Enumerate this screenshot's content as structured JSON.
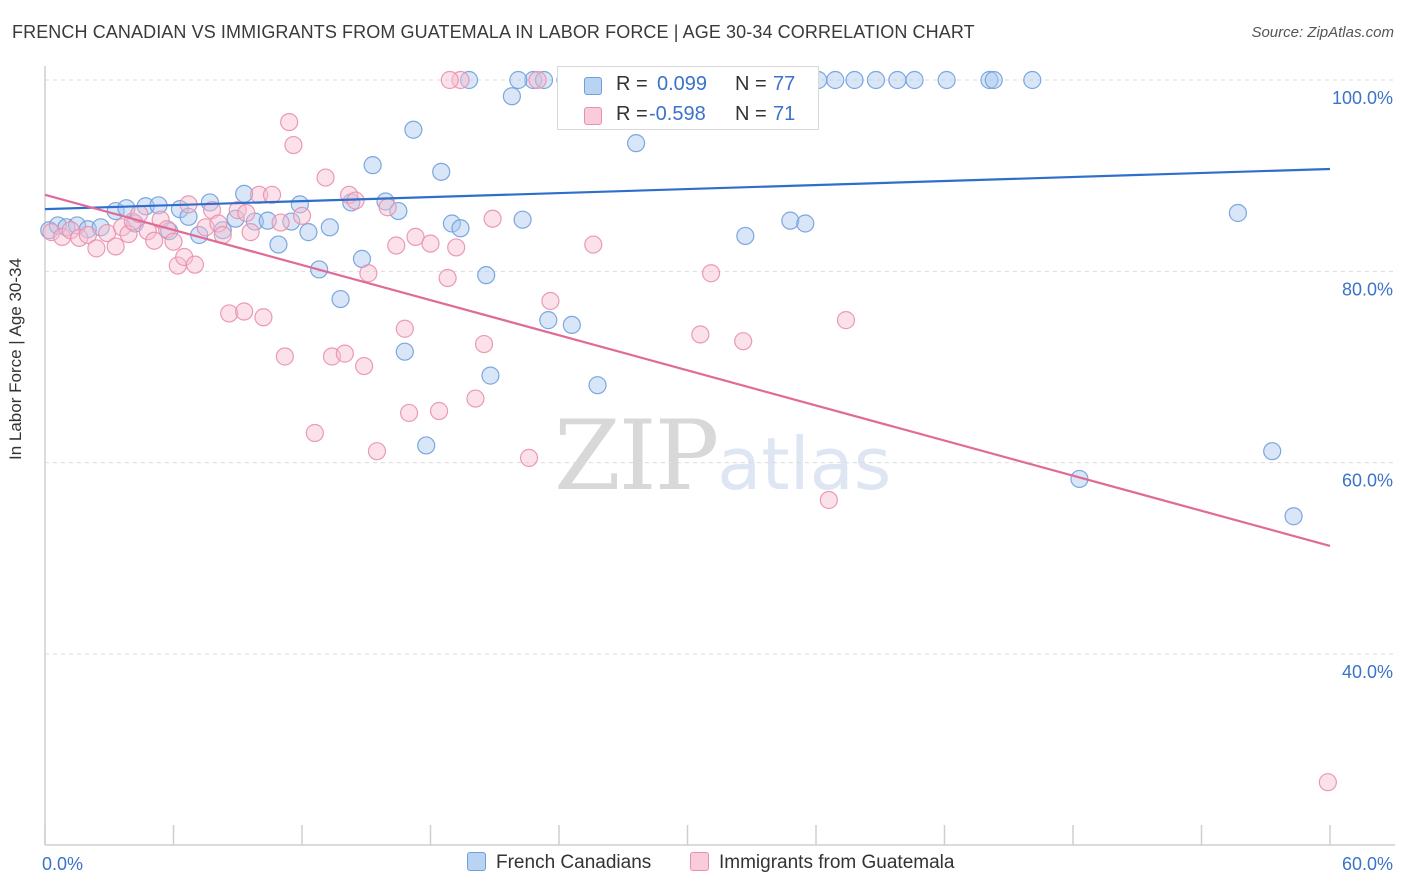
{
  "header": {
    "title": "FRENCH CANADIAN VS IMMIGRANTS FROM GUATEMALA IN LABOR FORCE | AGE 30-34 CORRELATION CHART",
    "source": "Source: ZipAtlas.com"
  },
  "watermark": {
    "zip": "ZIP",
    "atlas": "atlas"
  },
  "legend": {
    "r_label": "R =",
    "n_label": "N =",
    "rows": [
      {
        "r": "0.099",
        "n": "77"
      },
      {
        "r": "-0.598",
        "n": "71"
      }
    ]
  },
  "colors": {
    "blue_fill": "#a8c8f0",
    "blue_stroke": "#6f9fdc",
    "blue_line": "#2f6fcc",
    "pink_fill": "#f7bfd0",
    "pink_stroke": "#ea8fae",
    "pink_line": "#e06a98",
    "tick_text": "#3b73c8"
  },
  "chart_data": {
    "type": "scatter",
    "xlabel": "",
    "ylabel": "In Labor Force | Age 30-34",
    "xlim": [
      0,
      60
    ],
    "ylim": [
      20,
      102
    ],
    "x_tick_labels": [
      "0.0%",
      "60.0%"
    ],
    "y_ticks": [
      40,
      60,
      80,
      100
    ],
    "y_tick_labels": [
      "40.0%",
      "60.0%",
      "80.0%",
      "100.0%"
    ],
    "grid": true,
    "legend_position": "top-center",
    "series": [
      {
        "name": "French Canadians",
        "r": 0.099,
        "n": 77,
        "trend": {
          "x": [
            0,
            60
          ],
          "y": [
            86.5,
            90.7
          ]
        },
        "points": [
          [
            0.2,
            84.3
          ],
          [
            0.6,
            84.8
          ],
          [
            1.0,
            84.6
          ],
          [
            1.5,
            84.8
          ],
          [
            2.0,
            84.4
          ],
          [
            2.6,
            84.6
          ],
          [
            3.3,
            86.3
          ],
          [
            3.8,
            86.6
          ],
          [
            4.2,
            85.0
          ],
          [
            4.7,
            86.8
          ],
          [
            5.3,
            86.9
          ],
          [
            5.8,
            84.2
          ],
          [
            6.3,
            86.5
          ],
          [
            6.7,
            85.7
          ],
          [
            7.2,
            83.8
          ],
          [
            7.7,
            87.2
          ],
          [
            8.3,
            84.3
          ],
          [
            8.9,
            85.5
          ],
          [
            9.3,
            88.1
          ],
          [
            9.8,
            85.2
          ],
          [
            10.4,
            85.3
          ],
          [
            10.9,
            82.8
          ],
          [
            11.5,
            85.2
          ],
          [
            11.9,
            87.0
          ],
          [
            12.3,
            84.1
          ],
          [
            12.8,
            80.2
          ],
          [
            13.3,
            84.6
          ],
          [
            13.8,
            77.1
          ],
          [
            14.3,
            87.2
          ],
          [
            14.8,
            81.3
          ],
          [
            15.3,
            91.1
          ],
          [
            15.9,
            87.3
          ],
          [
            16.5,
            86.3
          ],
          [
            16.8,
            71.6
          ],
          [
            17.2,
            94.8
          ],
          [
            17.8,
            61.8
          ],
          [
            18.5,
            90.4
          ],
          [
            19.0,
            85.0
          ],
          [
            19.4,
            84.5
          ],
          [
            19.8,
            100.0
          ],
          [
            20.6,
            79.6
          ],
          [
            20.8,
            69.1
          ],
          [
            21.8,
            98.3
          ],
          [
            22.3,
            85.4
          ],
          [
            22.8,
            100.0
          ],
          [
            23.3,
            100.0
          ],
          [
            23.5,
            74.9
          ],
          [
            24.3,
            100.0
          ],
          [
            24.6,
            74.4
          ],
          [
            25.8,
            68.1
          ],
          [
            27.1,
            100.0
          ],
          [
            27.6,
            93.4
          ],
          [
            29.4,
            100.0
          ],
          [
            31.0,
            100.0
          ],
          [
            32.1,
            100.0
          ],
          [
            32.7,
            83.7
          ],
          [
            34.1,
            100.0
          ],
          [
            34.8,
            85.3
          ],
          [
            35.5,
            85.0
          ],
          [
            36.1,
            100.0
          ],
          [
            37.8,
            100.0
          ],
          [
            38.8,
            100.0
          ],
          [
            39.8,
            100.0
          ],
          [
            40.6,
            100.0
          ],
          [
            42.1,
            100.0
          ],
          [
            44.1,
            100.0
          ],
          [
            44.3,
            100.0
          ],
          [
            46.1,
            100.0
          ],
          [
            48.3,
            58.3
          ],
          [
            55.7,
            86.1
          ],
          [
            57.3,
            61.2
          ],
          [
            58.3,
            54.4
          ],
          [
            28.4,
            100.0
          ],
          [
            33.1,
            100.0
          ],
          [
            36.9,
            100.0
          ],
          [
            30.4,
            100.0
          ],
          [
            22.1,
            100.0
          ]
        ]
      },
      {
        "name": "Immigrants from Guatemala",
        "r": -0.598,
        "n": 71,
        "trend": {
          "x": [
            0,
            60
          ],
          "y": [
            88.0,
            51.3
          ]
        },
        "points": [
          [
            0.3,
            84.1
          ],
          [
            0.8,
            83.6
          ],
          [
            1.2,
            84.3
          ],
          [
            1.6,
            83.5
          ],
          [
            2.0,
            83.8
          ],
          [
            2.4,
            82.4
          ],
          [
            2.9,
            84.0
          ],
          [
            3.3,
            82.6
          ],
          [
            3.6,
            84.6
          ],
          [
            3.9,
            83.9
          ],
          [
            4.1,
            85.2
          ],
          [
            4.4,
            86.0
          ],
          [
            4.8,
            84.2
          ],
          [
            5.1,
            83.2
          ],
          [
            5.4,
            85.4
          ],
          [
            5.7,
            84.4
          ],
          [
            6.0,
            83.1
          ],
          [
            6.2,
            80.6
          ],
          [
            6.5,
            81.5
          ],
          [
            6.7,
            87.0
          ],
          [
            7.0,
            80.7
          ],
          [
            7.5,
            84.6
          ],
          [
            7.8,
            86.4
          ],
          [
            8.1,
            85.0
          ],
          [
            8.3,
            83.8
          ],
          [
            8.6,
            75.6
          ],
          [
            9.0,
            86.4
          ],
          [
            9.3,
            75.8
          ],
          [
            9.6,
            84.1
          ],
          [
            10.0,
            88.0
          ],
          [
            10.2,
            75.2
          ],
          [
            10.6,
            88.0
          ],
          [
            11.0,
            85.1
          ],
          [
            11.2,
            71.1
          ],
          [
            11.4,
            95.6
          ],
          [
            11.6,
            93.2
          ],
          [
            12.0,
            85.8
          ],
          [
            12.6,
            63.1
          ],
          [
            13.1,
            89.8
          ],
          [
            13.4,
            71.1
          ],
          [
            14.0,
            71.4
          ],
          [
            14.2,
            88.0
          ],
          [
            14.5,
            87.4
          ],
          [
            14.9,
            70.1
          ],
          [
            15.1,
            79.8
          ],
          [
            15.5,
            61.2
          ],
          [
            16.0,
            86.7
          ],
          [
            16.4,
            82.7
          ],
          [
            16.8,
            74.0
          ],
          [
            17.0,
            65.2
          ],
          [
            17.3,
            83.6
          ],
          [
            18.0,
            82.9
          ],
          [
            18.4,
            65.4
          ],
          [
            18.8,
            79.3
          ],
          [
            19.2,
            82.5
          ],
          [
            19.4,
            100.0
          ],
          [
            20.1,
            66.7
          ],
          [
            20.5,
            72.4
          ],
          [
            20.9,
            85.5
          ],
          [
            22.6,
            60.5
          ],
          [
            23.0,
            100.0
          ],
          [
            23.6,
            76.9
          ],
          [
            25.6,
            82.8
          ],
          [
            30.6,
            73.4
          ],
          [
            31.1,
            79.8
          ],
          [
            32.6,
            72.7
          ],
          [
            36.6,
            56.1
          ],
          [
            37.4,
            74.9
          ],
          [
            59.9,
            26.6
          ],
          [
            9.4,
            86.1
          ],
          [
            18.9,
            100.0
          ]
        ]
      }
    ]
  },
  "bottom_legend": {
    "items": [
      "French Canadians",
      "Immigrants from Guatemala"
    ]
  }
}
